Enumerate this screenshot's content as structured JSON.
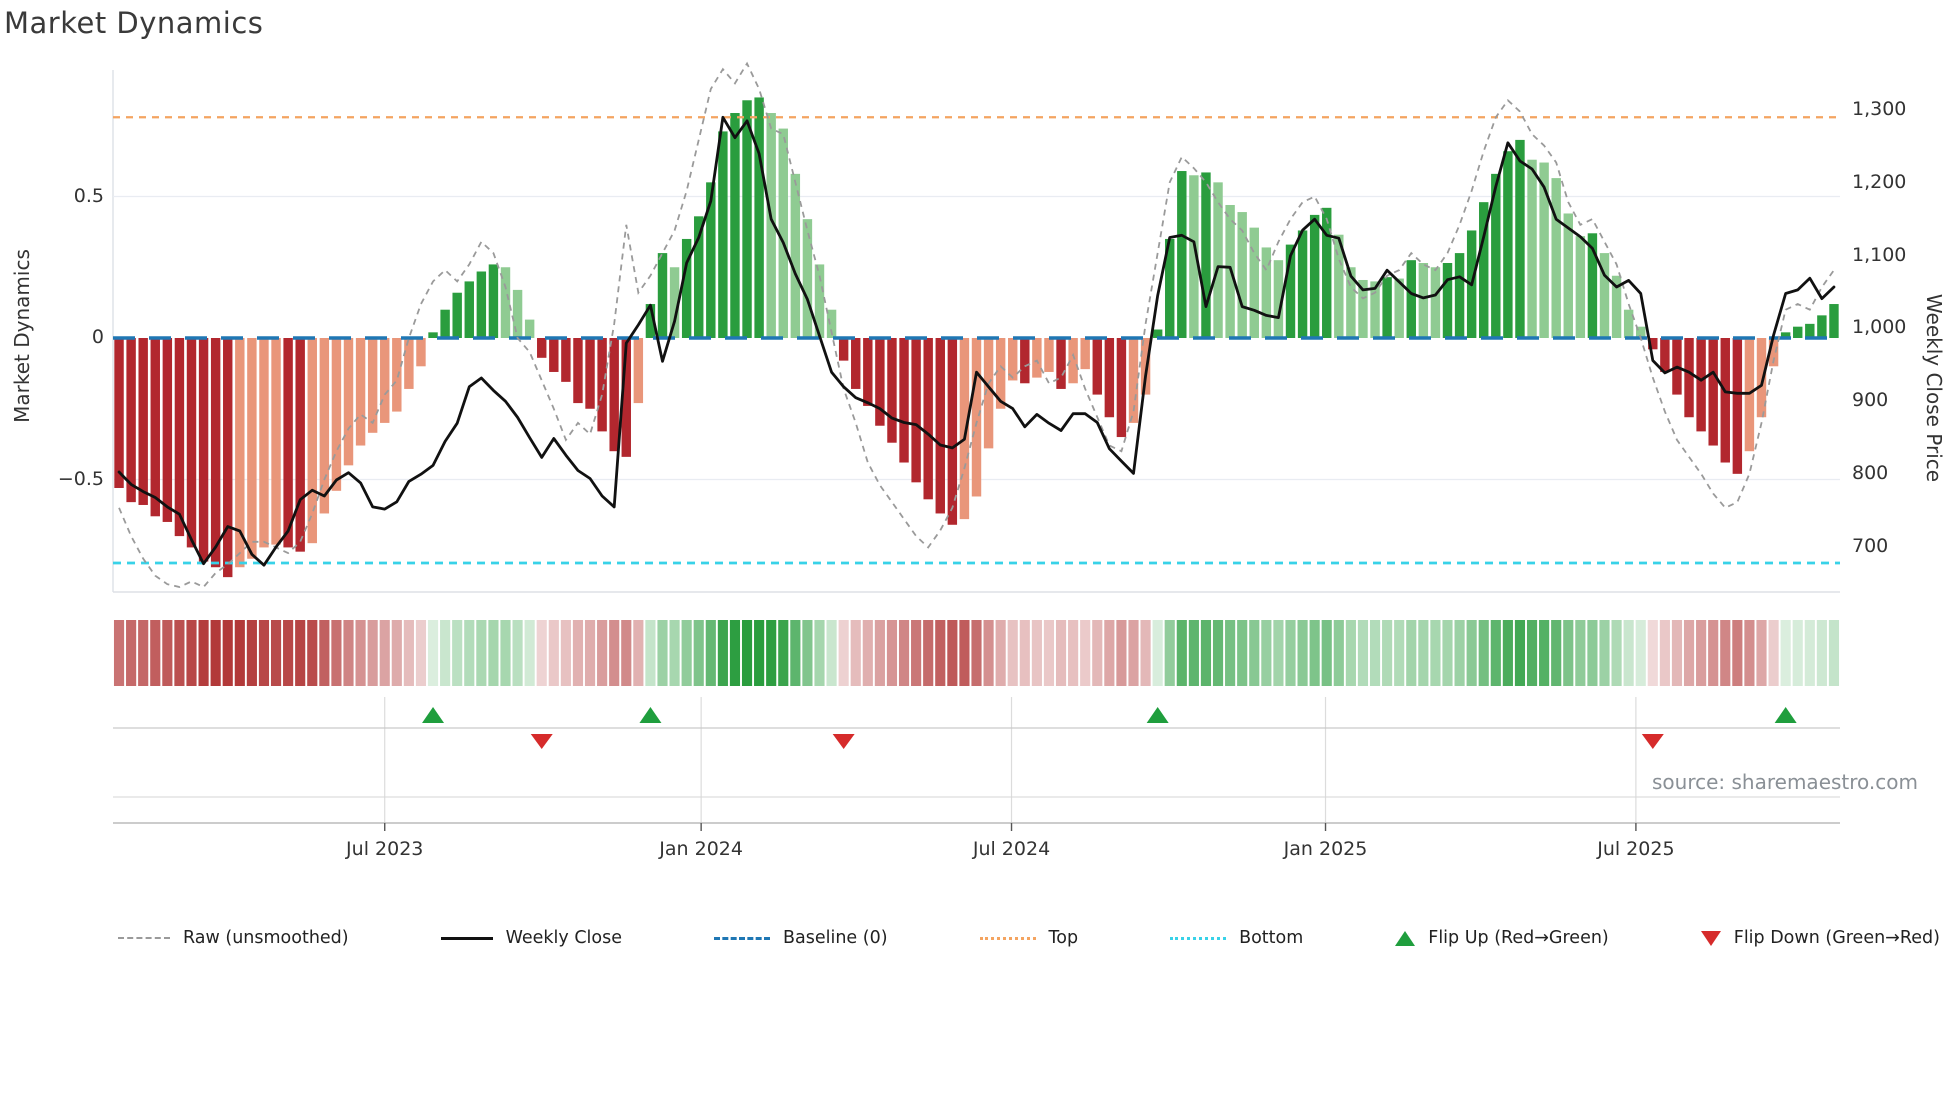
{
  "title": "Market Dynamics",
  "source_note": "source: sharemaestro.com",
  "axes": {
    "left_title": "Market Dynamics",
    "right_title": "Weekly Close Price",
    "left_ticks": [
      {
        "value": 0.5,
        "label": "0.5"
      },
      {
        "value": 0,
        "label": "0"
      },
      {
        "value": -0.5,
        "label": "−0.5"
      }
    ],
    "right_ticks": [
      {
        "value": 1300,
        "label": "1,300"
      },
      {
        "value": 1200,
        "label": "1,200"
      },
      {
        "value": 1100,
        "label": "1,100"
      },
      {
        "value": 1000,
        "label": "1,000"
      },
      {
        "value": 900,
        "label": "900"
      },
      {
        "value": 800,
        "label": "800"
      },
      {
        "value": 700,
        "label": "700"
      }
    ],
    "x_ticks": [
      {
        "week": 22,
        "label": "Jul 2023"
      },
      {
        "week": 48.2,
        "label": "Jan 2024"
      },
      {
        "week": 73.9,
        "label": "Jul 2024"
      },
      {
        "week": 99.9,
        "label": "Jan 2025"
      },
      {
        "week": 125.6,
        "label": "Jul 2025"
      }
    ]
  },
  "legend": {
    "items": [
      {
        "key": "raw",
        "label": "Raw (unsmoothed)"
      },
      {
        "key": "close",
        "label": "Weekly Close"
      },
      {
        "key": "baseline",
        "label": "Baseline (0)"
      },
      {
        "key": "top",
        "label": "Top"
      },
      {
        "key": "bottom",
        "label": "Bottom"
      },
      {
        "key": "flip_up",
        "label": "Flip Up (Red→Green)"
      },
      {
        "key": "flip_down",
        "label": "Flip Down (Green→Red)"
      }
    ]
  },
  "colors": {
    "bar_green_strong": "#2a9d3e",
    "bar_green_light": "#8fcb92",
    "bar_red_strong": "#b2272e",
    "bar_red_light": "#e9967a",
    "baseline": "#1f77b4",
    "top": "#f4a460",
    "bottom": "#38d2e8",
    "raw_line": "#9a9a9a",
    "close_line": "#111111",
    "flip_up": "#1f9e3d",
    "flip_down": "#d62b2b",
    "grid": "#e9ecf2",
    "spine": "#dde0e6",
    "panel_line": "#c9c9c9",
    "title_text": "#3a3a3a"
  },
  "chart_data": {
    "type": "bar+line (dual axis) with heatmap strip and flip markers",
    "title": "Market Dynamics",
    "xlabel_ticks": [
      "Jul 2023",
      "Jan 2024",
      "Jul 2024",
      "Jan 2025",
      "Jul 2025"
    ],
    "left_axis": {
      "label": "Market Dynamics",
      "range": [
        -0.9,
        0.95
      ],
      "ticks": [
        0.5,
        0,
        -0.5
      ]
    },
    "right_axis": {
      "label": "Weekly Close Price",
      "range": [
        662,
        1318
      ],
      "ticks": [
        1300,
        1200,
        1100,
        1000,
        900,
        800,
        700
      ]
    },
    "baseline_value": 0,
    "top_threshold": 0.78,
    "bottom_threshold": -0.795,
    "n_weeks": 143,
    "series": [
      {
        "name": "Market Dynamics (smoothed bars)",
        "values": [
          -0.53,
          -0.58,
          -0.59,
          -0.63,
          -0.65,
          -0.7,
          -0.74,
          -0.79,
          -0.81,
          -0.845,
          -0.81,
          -0.78,
          -0.74,
          -0.73,
          -0.74,
          -0.755,
          -0.725,
          -0.62,
          -0.54,
          -0.45,
          -0.38,
          -0.335,
          -0.3,
          -0.26,
          -0.18,
          -0.1,
          0.02,
          0.1,
          0.16,
          0.2,
          0.235,
          0.26,
          0.25,
          0.17,
          0.065,
          -0.07,
          -0.12,
          -0.155,
          -0.23,
          -0.25,
          -0.33,
          -0.4,
          -0.42,
          -0.23,
          0.12,
          0.3,
          0.25,
          0.35,
          0.43,
          0.55,
          0.73,
          0.795,
          0.84,
          0.85,
          0.795,
          0.74,
          0.58,
          0.42,
          0.26,
          0.1,
          -0.08,
          -0.18,
          -0.24,
          -0.31,
          -0.37,
          -0.44,
          -0.51,
          -0.57,
          -0.62,
          -0.66,
          -0.64,
          -0.56,
          -0.39,
          -0.25,
          -0.15,
          -0.16,
          -0.14,
          -0.12,
          -0.18,
          -0.16,
          -0.11,
          -0.2,
          -0.28,
          -0.35,
          -0.3,
          -0.2,
          0.03,
          0.35,
          0.59,
          0.575,
          0.585,
          0.55,
          0.47,
          0.445,
          0.39,
          0.32,
          0.275,
          0.33,
          0.38,
          0.435,
          0.46,
          0.365,
          0.25,
          0.205,
          0.2,
          0.215,
          0.21,
          0.275,
          0.265,
          0.25,
          0.265,
          0.3,
          0.38,
          0.48,
          0.58,
          0.66,
          0.7,
          0.63,
          0.62,
          0.565,
          0.44,
          0.36,
          0.37,
          0.3,
          0.22,
          0.1,
          0.04,
          -0.04,
          -0.12,
          -0.2,
          -0.28,
          -0.33,
          -0.38,
          -0.44,
          -0.48,
          -0.4,
          -0.28,
          -0.1,
          0.02,
          0.04,
          0.05,
          0.08,
          0.12
        ]
      },
      {
        "name": "Raw (unsmoothed)",
        "values": [
          -0.6,
          -0.7,
          -0.78,
          -0.84,
          -0.87,
          -0.88,
          -0.86,
          -0.88,
          -0.83,
          -0.8,
          -0.76,
          -0.72,
          -0.72,
          -0.74,
          -0.76,
          -0.72,
          -0.62,
          -0.5,
          -0.4,
          -0.32,
          -0.27,
          -0.3,
          -0.2,
          -0.15,
          0.0,
          0.12,
          0.2,
          0.24,
          0.2,
          0.26,
          0.34,
          0.3,
          0.18,
          0.0,
          -0.05,
          -0.15,
          -0.25,
          -0.36,
          -0.3,
          -0.34,
          -0.2,
          0.05,
          0.4,
          0.16,
          0.22,
          0.3,
          0.38,
          0.52,
          0.7,
          0.88,
          0.95,
          0.9,
          0.97,
          0.88,
          0.74,
          0.72,
          0.55,
          0.38,
          0.22,
          0.02,
          -0.18,
          -0.3,
          -0.44,
          -0.52,
          -0.58,
          -0.64,
          -0.7,
          -0.74,
          -0.68,
          -0.6,
          -0.46,
          -0.3,
          -0.16,
          -0.1,
          -0.14,
          -0.1,
          -0.08,
          -0.16,
          -0.14,
          -0.06,
          -0.18,
          -0.28,
          -0.38,
          -0.4,
          -0.26,
          0.05,
          0.3,
          0.55,
          0.64,
          0.6,
          0.55,
          0.48,
          0.42,
          0.38,
          0.3,
          0.24,
          0.34,
          0.42,
          0.48,
          0.5,
          0.42,
          0.28,
          0.18,
          0.14,
          0.16,
          0.22,
          0.24,
          0.3,
          0.26,
          0.24,
          0.3,
          0.4,
          0.52,
          0.66,
          0.78,
          0.84,
          0.8,
          0.72,
          0.68,
          0.62,
          0.48,
          0.4,
          0.42,
          0.34,
          0.26,
          0.12,
          0.0,
          -0.14,
          -0.26,
          -0.36,
          -0.42,
          -0.48,
          -0.55,
          -0.6,
          -0.58,
          -0.48,
          -0.3,
          -0.08,
          0.1,
          0.12,
          0.1,
          0.18,
          0.24
        ]
      },
      {
        "name": "Weekly Close",
        "axis": "right",
        "values": [
          803,
          786,
          776,
          768,
          755,
          745,
          710,
          677,
          700,
          728,
          722,
          690,
          675,
          700,
          722,
          765,
          778,
          770,
          792,
          802,
          788,
          755,
          752,
          762,
          790,
          800,
          812,
          845,
          870,
          920,
          932,
          915,
          900,
          878,
          850,
          823,
          849,
          826,
          805,
          794,
          770,
          755,
          980,
          1005,
          1032,
          955,
          1010,
          1090,
          1125,
          1175,
          1290,
          1262,
          1285,
          1240,
          1150,
          1118,
          1075,
          1040,
          990,
          940,
          920,
          905,
          898,
          890,
          877,
          871,
          868,
          855,
          840,
          836,
          848,
          940,
          920,
          900,
          890,
          865,
          882,
          870,
          860,
          883,
          883,
          871,
          835,
          818,
          801,
          935,
          1045,
          1125,
          1128,
          1119,
          1030,
          1085,
          1084,
          1030,
          1025,
          1018,
          1015,
          1100,
          1135,
          1150,
          1128,
          1124,
          1072,
          1053,
          1055,
          1080,
          1064,
          1048,
          1042,
          1046,
          1067,
          1071,
          1060,
          1126,
          1195,
          1255,
          1230,
          1219,
          1194,
          1150,
          1138,
          1126,
          1110,
          1073,
          1057,
          1066,
          1048,
          956,
          939,
          947,
          940,
          929,
          940,
          913,
          911,
          911,
          922,
          991,
          1048,
          1053,
          1069,
          1041,
          1057
        ]
      }
    ],
    "flip_up_weeks": [
      26,
      44,
      86,
      138
    ],
    "flip_down_weeks": [
      35,
      60,
      127
    ],
    "heatmap_strip": "same oscillator values, red/green intensity proportional to |value|",
    "legend_position": "bottom",
    "grid": "horizontal at ±0.5 only"
  }
}
